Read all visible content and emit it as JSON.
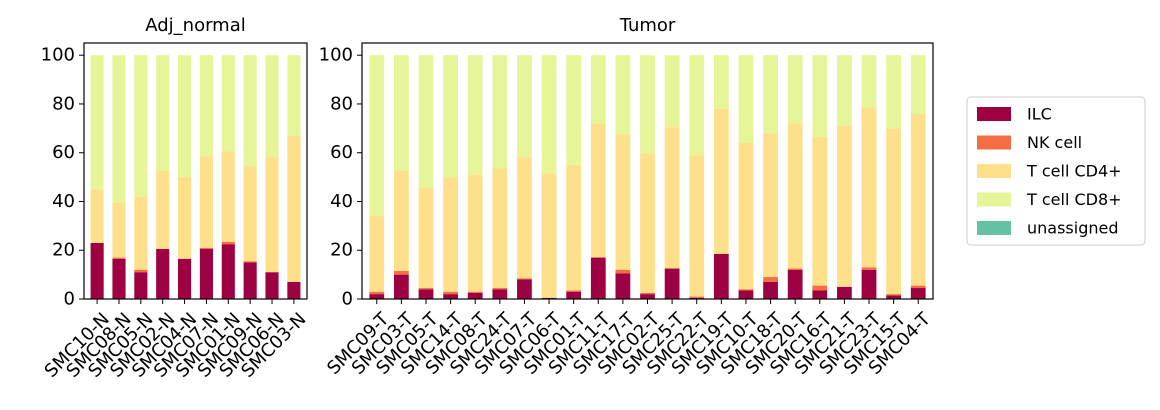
{
  "chart_data": [
    {
      "type": "bar",
      "stacked": true,
      "title": "Adj_normal",
      "xlabel": "",
      "ylabel": "",
      "ylim": [
        0,
        105
      ],
      "yticks": [
        0,
        20,
        40,
        60,
        80,
        100
      ],
      "categories": [
        "SMC10-N",
        "SMC08-N",
        "SMC05-N",
        "SMC02-N",
        "SMC04-N",
        "SMC07-N",
        "SMC01-N",
        "SMC09-N",
        "SMC06-N",
        "SMC03-N"
      ],
      "series": [
        {
          "name": "ILC",
          "color": "#9e0142",
          "values": [
            23,
            16.5,
            11,
            20.5,
            16.5,
            20.5,
            22.5,
            15,
            11,
            7
          ]
        },
        {
          "name": "NK cell",
          "color": "#f46d43",
          "values": [
            0,
            0.5,
            1,
            0,
            0,
            0.5,
            1,
            0.5,
            0,
            0
          ]
        },
        {
          "name": "T cell CD4+",
          "color": "#fee08b",
          "values": [
            22,
            22.5,
            30,
            32,
            33.5,
            37.5,
            37,
            39,
            47,
            60
          ]
        },
        {
          "name": "T cell CD8+",
          "color": "#e6f598",
          "values": [
            55,
            60.5,
            58,
            47.5,
            50,
            41.5,
            39.5,
            45.5,
            42,
            33
          ]
        },
        {
          "name": "unassigned",
          "color": "#66c2a5",
          "values": [
            0,
            0,
            0,
            0,
            0,
            0,
            0,
            0,
            0,
            0
          ]
        }
      ]
    },
    {
      "type": "bar",
      "stacked": true,
      "title": "Tumor",
      "xlabel": "",
      "ylabel": "",
      "ylim": [
        0,
        105
      ],
      "yticks": [
        0,
        20,
        40,
        60,
        80,
        100
      ],
      "categories": [
        "SMC09-T",
        "SMC03-T",
        "SMC05-T",
        "SMC14-T",
        "SMC08-T",
        "SMC24-T",
        "SMC07-T",
        "SMC06-T",
        "SMC01-T",
        "SMC11-T",
        "SMC17-T",
        "SMC02-T",
        "SMC25-T",
        "SMC22-T",
        "SMC19-T",
        "SMC10-T",
        "SMC18-T",
        "SMC20-T",
        "SMC16-T",
        "SMC21-T",
        "SMC23-T",
        "SMC15-T",
        "SMC04-T"
      ],
      "series": [
        {
          "name": "ILC",
          "color": "#9e0142",
          "values": [
            2,
            10,
            4,
            2,
            2.5,
            4,
            8,
            0.5,
            3,
            17,
            10.5,
            2,
            12.5,
            0.5,
            18.5,
            3.5,
            7,
            12,
            3.5,
            5,
            12,
            1.5,
            4.5
          ]
        },
        {
          "name": "NK cell",
          "color": "#f46d43",
          "values": [
            1,
            1.5,
            0.5,
            1,
            0.5,
            0.5,
            0.5,
            0,
            0.5,
            0,
            1.5,
            0.5,
            0,
            0.5,
            0,
            0.5,
            2,
            0.5,
            2,
            0,
            1,
            0.5,
            1
          ]
        },
        {
          "name": "T cell CD4+",
          "color": "#fee08b",
          "values": [
            31,
            41,
            41,
            47,
            48,
            49,
            49.5,
            51,
            51.5,
            55,
            55.5,
            57,
            58,
            58,
            59.5,
            60,
            59,
            59.5,
            61,
            66,
            65.5,
            68,
            70.5
          ]
        },
        {
          "name": "T cell CD8+",
          "color": "#e6f598",
          "values": [
            66,
            47.5,
            54.5,
            50,
            49,
            46.5,
            42,
            48.5,
            45,
            28,
            32.5,
            40.5,
            29.5,
            41,
            22,
            36,
            32,
            28,
            33.5,
            29,
            21.5,
            30,
            24
          ]
        },
        {
          "name": "unassigned",
          "color": "#66c2a5",
          "values": [
            0,
            0,
            0,
            0,
            0,
            0,
            0,
            0,
            0,
            0,
            0,
            0,
            0,
            0,
            0,
            0,
            0,
            0,
            0,
            0,
            0,
            0,
            0
          ]
        }
      ]
    }
  ],
  "legend": {
    "placement": "right",
    "entries": [
      {
        "label": "ILC",
        "color": "#9e0142"
      },
      {
        "label": "NK cell",
        "color": "#f46d43"
      },
      {
        "label": "T cell CD4+",
        "color": "#fee08b"
      },
      {
        "label": "T cell CD8+",
        "color": "#e6f598"
      },
      {
        "label": "unassigned",
        "color": "#66c2a5"
      }
    ]
  }
}
